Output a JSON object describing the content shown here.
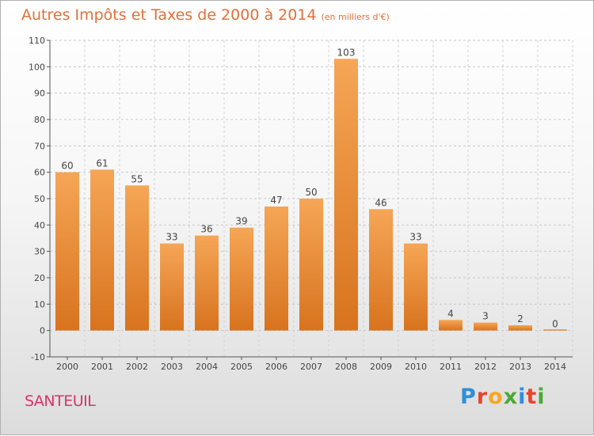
{
  "title": "Autres Impôts et Taxes de 2000 à 2014",
  "subtitle": "(en milliers d'€)",
  "commune": "SANTEUIL",
  "brand": {
    "letters": [
      "P",
      "r",
      "o",
      "x",
      "i",
      "t",
      "i"
    ],
    "colors": [
      "#2f8fd8",
      "#e8442f",
      "#f5a623",
      "#4aa935",
      "#2f8fd8",
      "#e8442f",
      "#4aa935"
    ]
  },
  "chart_data": {
    "type": "bar",
    "categories": [
      "2000",
      "2001",
      "2002",
      "2003",
      "2004",
      "2005",
      "2006",
      "2007",
      "2008",
      "2009",
      "2010",
      "2011",
      "2012",
      "2013",
      "2014"
    ],
    "values": [
      60,
      61,
      55,
      33,
      36,
      39,
      47,
      50,
      103,
      46,
      33,
      4,
      3,
      2,
      0
    ],
    "ylim": [
      -10,
      110
    ],
    "yticks": [
      -10,
      0,
      10,
      20,
      30,
      40,
      50,
      60,
      70,
      80,
      90,
      100,
      110
    ],
    "grid": true,
    "bar_color": "#f0912f"
  }
}
